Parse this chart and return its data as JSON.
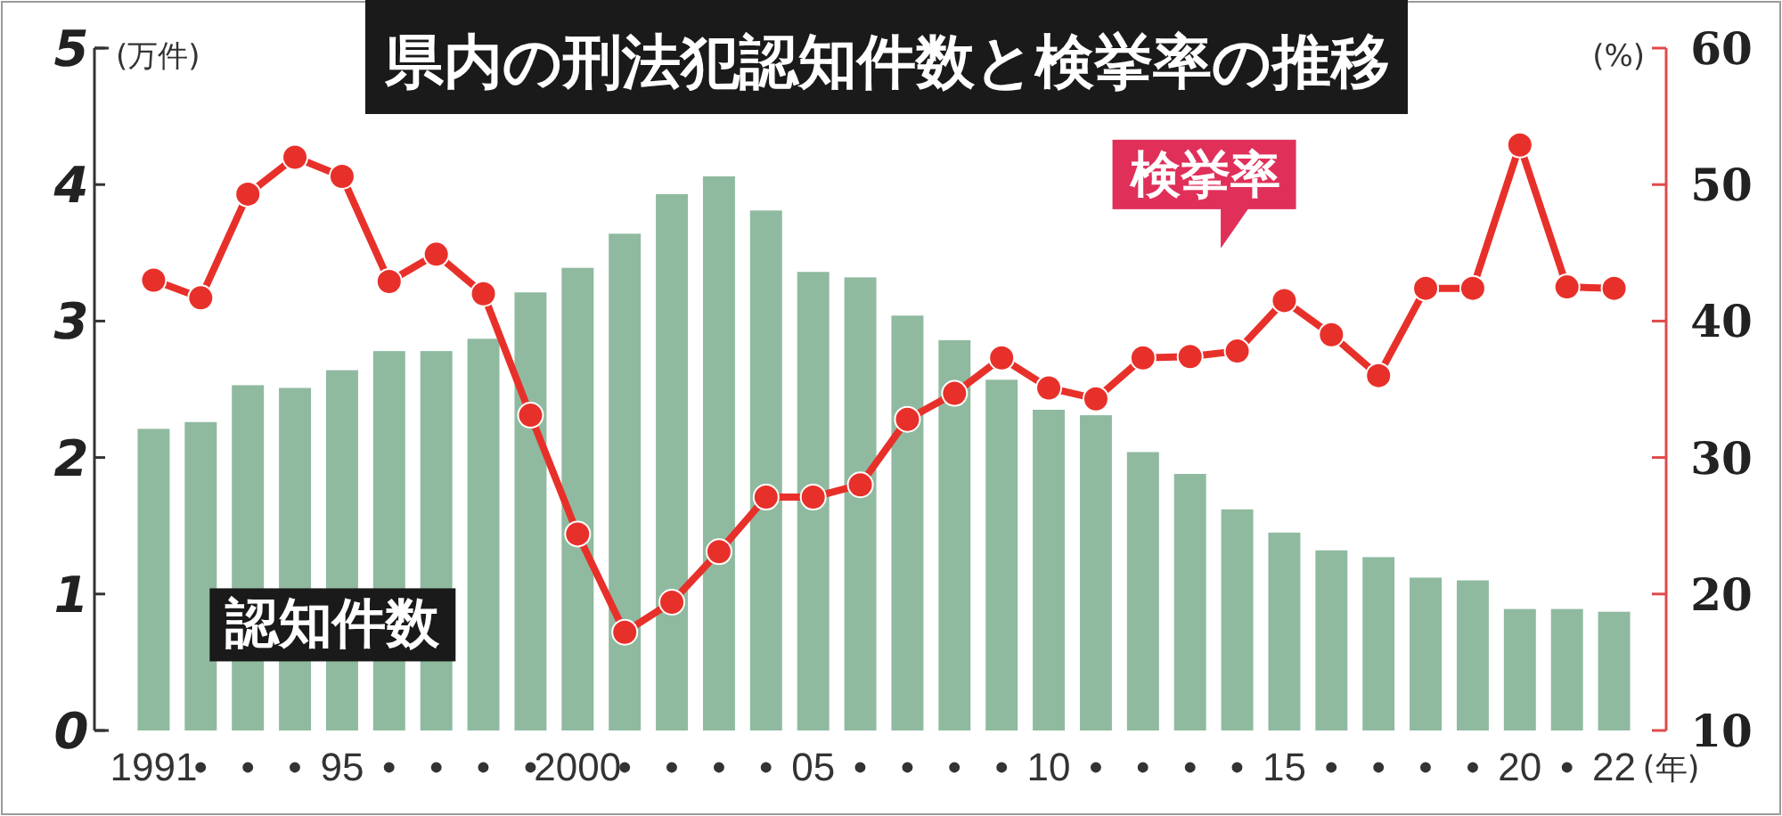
{
  "chart_data": {
    "type": "bar",
    "title": "県内の刑法犯認知件数と検挙率の推移",
    "categories": [
      "1991",
      "•",
      "•",
      "•",
      "95",
      "•",
      "•",
      "•",
      "•",
      "2000",
      "•",
      "•",
      "•",
      "•",
      "05",
      "•",
      "•",
      "•",
      "•",
      "10",
      "•",
      "•",
      "•",
      "•",
      "15",
      "•",
      "•",
      "•",
      "•",
      "20",
      "•",
      "22"
    ],
    "series": [
      {
        "name": "認知件数",
        "color": "#8fbaa0",
        "values": [
          2.21,
          2.26,
          2.53,
          2.51,
          2.64,
          2.78,
          2.78,
          2.87,
          3.21,
          3.39,
          3.64,
          3.93,
          4.06,
          3.81,
          3.36,
          3.32,
          3.04,
          2.86,
          2.57,
          2.35,
          2.31,
          2.04,
          1.88,
          1.62,
          1.45,
          1.32,
          1.27,
          1.12,
          1.1,
          0.89,
          0.89,
          0.87
        ]
      },
      {
        "name": "検挙率",
        "type": "line",
        "axis": "y2",
        "color": "#e8302a",
        "values": [
          43.0,
          41.7,
          49.3,
          52.0,
          50.6,
          42.9,
          44.9,
          42.0,
          33.1,
          24.4,
          17.2,
          19.4,
          23.1,
          27.1,
          27.1,
          28.0,
          32.8,
          34.7,
          37.3,
          35.1,
          34.3,
          37.3,
          37.4,
          37.8,
          41.5,
          39.0,
          36.0,
          42.4,
          42.4,
          52.9,
          42.5,
          42.4
        ]
      }
    ],
    "xlabel": "(年)",
    "ylabel": "(万件)",
    "y2label": "(%)",
    "ylim": [
      0,
      5
    ],
    "yticks": [
      0,
      1,
      2,
      3,
      4,
      5
    ],
    "y2lim": [
      10,
      60
    ],
    "y2ticks": [
      10,
      20,
      30,
      40,
      50,
      60
    ],
    "marker": "circle",
    "grid": false
  }
}
